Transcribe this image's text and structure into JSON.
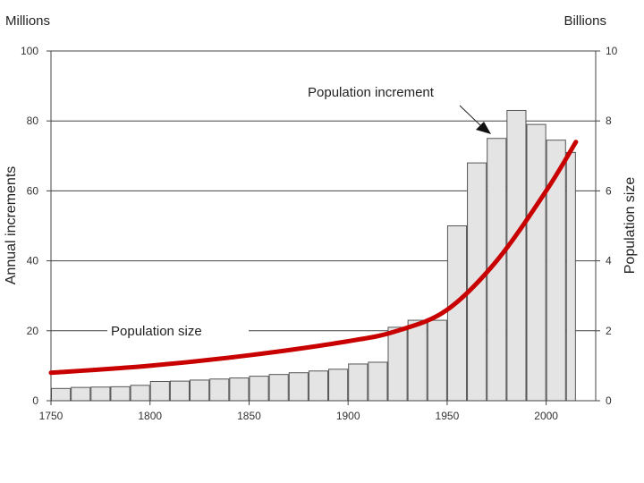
{
  "chart_data": {
    "type": "bar",
    "title": "",
    "left_unit_label": "Millions",
    "right_unit_label": "Billions",
    "ylabel": "Annual increments",
    "ylabel_right": "Population size",
    "xlabel": "",
    "xlim": [
      1750,
      2025
    ],
    "ylim": [
      0,
      100
    ],
    "ylim_right": [
      0,
      10
    ],
    "x_ticks": [
      1750,
      1800,
      1850,
      1900,
      1950,
      2000
    ],
    "y_ticks": [
      0,
      20,
      40,
      60,
      80,
      100
    ],
    "y_ticks_right": [
      0,
      2,
      4,
      6,
      8,
      10
    ],
    "grid": true,
    "bar_colors": {
      "fill": "#e4e4e4",
      "stroke": "#555555"
    },
    "line_color": "#c80000",
    "series": [
      {
        "name": "Population increment",
        "type": "bar",
        "axis": "left",
        "bars": [
          {
            "start": 1750,
            "end": 1760,
            "value": 3.5
          },
          {
            "start": 1760,
            "end": 1770,
            "value": 3.8
          },
          {
            "start": 1770,
            "end": 1780,
            "value": 3.9
          },
          {
            "start": 1780,
            "end": 1790,
            "value": 4.0
          },
          {
            "start": 1790,
            "end": 1800,
            "value": 4.4
          },
          {
            "start": 1800,
            "end": 1810,
            "value": 5.5
          },
          {
            "start": 1810,
            "end": 1820,
            "value": 5.6
          },
          {
            "start": 1820,
            "end": 1830,
            "value": 5.9
          },
          {
            "start": 1830,
            "end": 1840,
            "value": 6.2
          },
          {
            "start": 1840,
            "end": 1850,
            "value": 6.5
          },
          {
            "start": 1850,
            "end": 1860,
            "value": 7.0
          },
          {
            "start": 1860,
            "end": 1870,
            "value": 7.5
          },
          {
            "start": 1870,
            "end": 1880,
            "value": 8.0
          },
          {
            "start": 1880,
            "end": 1890,
            "value": 8.5
          },
          {
            "start": 1890,
            "end": 1900,
            "value": 9.0
          },
          {
            "start": 1900,
            "end": 1910,
            "value": 10.5
          },
          {
            "start": 1910,
            "end": 1920,
            "value": 11.0
          },
          {
            "start": 1920,
            "end": 1930,
            "value": 21.0
          },
          {
            "start": 1930,
            "end": 1940,
            "value": 23.0
          },
          {
            "start": 1940,
            "end": 1950,
            "value": 23.0
          },
          {
            "start": 1950,
            "end": 1960,
            "value": 50.0
          },
          {
            "start": 1960,
            "end": 1970,
            "value": 68.0
          },
          {
            "start": 1970,
            "end": 1980,
            "value": 75.0
          },
          {
            "start": 1980,
            "end": 1990,
            "value": 83.0
          },
          {
            "start": 1990,
            "end": 2000,
            "value": 79.0
          },
          {
            "start": 2000,
            "end": 2010,
            "value": 74.5
          },
          {
            "start": 2010,
            "end": 2015,
            "value": 71.0
          }
        ]
      },
      {
        "name": "Population size",
        "type": "line",
        "axis": "right",
        "x": [
          1750,
          1800,
          1850,
          1900,
          1925,
          1950,
          1975,
          2000,
          2015
        ],
        "values": [
          0.8,
          1.0,
          1.3,
          1.7,
          2.0,
          2.6,
          4.0,
          6.0,
          7.4
        ]
      }
    ],
    "annotations": [
      {
        "text": "Population increment",
        "target_series": "Population increment",
        "target_x": 1980,
        "target_value": 78
      },
      {
        "text": "Population size",
        "target_series": "Population size",
        "target_x": 1780,
        "target_value": 1.8
      }
    ]
  }
}
